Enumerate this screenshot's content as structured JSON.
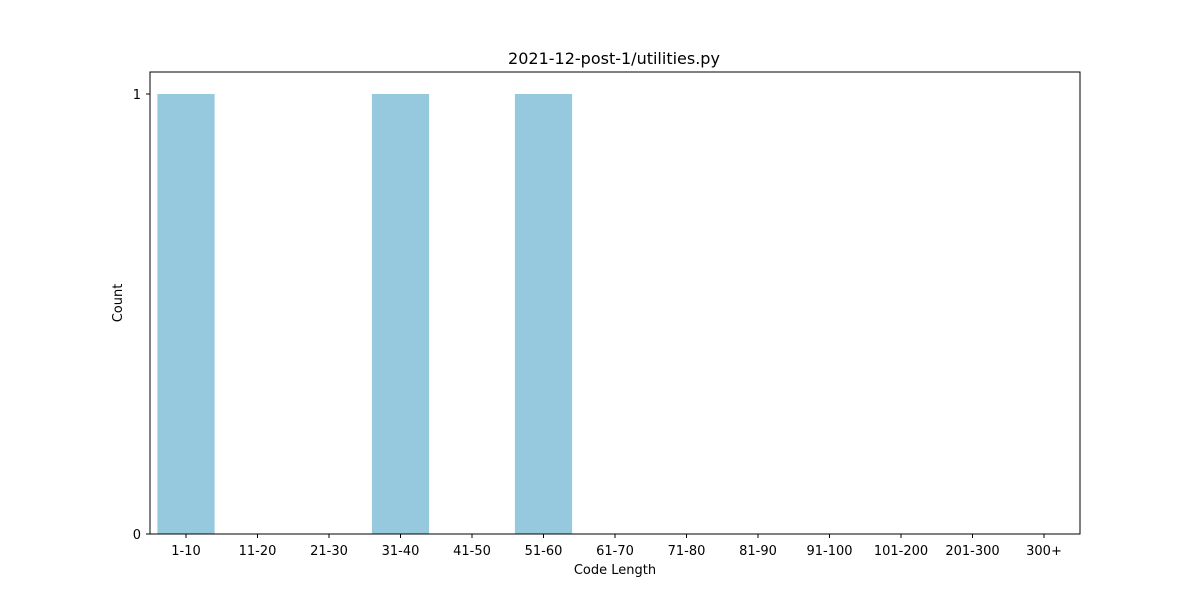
{
  "chart_data": {
    "type": "bar",
    "title": "2021-12-post-1/utilities.py",
    "xlabel": "Code Length",
    "ylabel": "Count",
    "categories": [
      "1-10",
      "11-20",
      "21-30",
      "31-40",
      "41-50",
      "51-60",
      "61-70",
      "71-80",
      "81-90",
      "91-100",
      "101-200",
      "201-300",
      "300+"
    ],
    "values": [
      1,
      0,
      0,
      1,
      0,
      1,
      0,
      0,
      0,
      0,
      0,
      0,
      0
    ],
    "ylim": [
      0,
      1.05
    ],
    "yticks": [
      0,
      1
    ],
    "ytick_labels": [
      "0",
      "1"
    ],
    "bar_color": "#96c8de",
    "grid": false,
    "legend": "none"
  }
}
